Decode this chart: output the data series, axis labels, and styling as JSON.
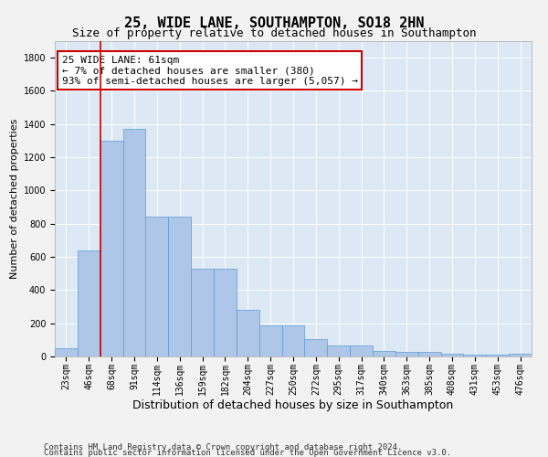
{
  "title1": "25, WIDE LANE, SOUTHAMPTON, SO18 2HN",
  "title2": "Size of property relative to detached houses in Southampton",
  "xlabel": "Distribution of detached houses by size in Southampton",
  "ylabel": "Number of detached properties",
  "categories": [
    "23sqm",
    "46sqm",
    "68sqm",
    "91sqm",
    "114sqm",
    "136sqm",
    "159sqm",
    "182sqm",
    "204sqm",
    "227sqm",
    "250sqm",
    "272sqm",
    "295sqm",
    "317sqm",
    "340sqm",
    "363sqm",
    "385sqm",
    "408sqm",
    "431sqm",
    "453sqm",
    "476sqm"
  ],
  "values": [
    50,
    640,
    1300,
    1370,
    840,
    840,
    530,
    530,
    280,
    185,
    185,
    105,
    65,
    65,
    35,
    30,
    30,
    15,
    10,
    10,
    15
  ],
  "bar_color": "#aec6e8",
  "bar_edge_color": "#5b9bd5",
  "ref_line_x": 1.5,
  "ref_line_color": "#cc0000",
  "annotation_text": "25 WIDE LANE: 61sqm\n← 7% of detached houses are smaller (380)\n93% of semi-detached houses are larger (5,057) →",
  "annotation_facecolor": "#ffffff",
  "annotation_edgecolor": "#cc0000",
  "ylim": [
    0,
    1900
  ],
  "yticks": [
    0,
    200,
    400,
    600,
    800,
    1000,
    1200,
    1400,
    1600,
    1800
  ],
  "bg_color": "#dce9f5",
  "fig_bg_color": "#f2f2f2",
  "footer_line1": "Contains HM Land Registry data © Crown copyright and database right 2024.",
  "footer_line2": "Contains public sector information licensed under the Open Government Licence v3.0.",
  "title1_fontsize": 11,
  "title2_fontsize": 9,
  "xlabel_fontsize": 9,
  "ylabel_fontsize": 8,
  "tick_fontsize": 7,
  "annotation_fontsize": 8,
  "footer_fontsize": 6.5
}
